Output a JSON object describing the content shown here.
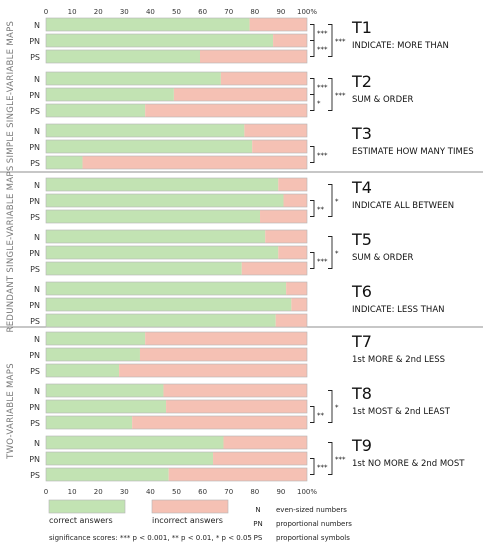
{
  "chart_data": {
    "type": "bar",
    "orientation": "horizontal-stacked",
    "x_ticks": [
      "0",
      "10",
      "20",
      "30",
      "40",
      "50",
      "60",
      "70",
      "80",
      "90",
      "100%"
    ],
    "xlim": [
      0,
      100
    ],
    "colors": {
      "correct": "#c2e3b3",
      "incorrect": "#f5c1b4"
    },
    "groups": [
      {
        "label": "SIMPLE SINGLE-VARIABLE MAPS",
        "tasks": [
          0,
          1,
          2
        ]
      },
      {
        "label": "REDUNDANT SINGLE-VARIABLE MAPS",
        "tasks": [
          3,
          4,
          5
        ]
      },
      {
        "label": "TWO-VARIABLE MAPS",
        "tasks": [
          6,
          7,
          8
        ]
      }
    ],
    "tasks": [
      {
        "name": "T1",
        "description": "INDICATE: MORE THAN",
        "rows": [
          {
            "label": "N",
            "correct": 78
          },
          {
            "label": "PN",
            "correct": 87
          },
          {
            "label": "PS",
            "correct": 59
          }
        ],
        "sig": [
          {
            "pair": [
              0,
              1
            ],
            "stars": "***"
          },
          {
            "pair": [
              1,
              2
            ],
            "stars": "***"
          },
          {
            "pair": [
              0,
              2
            ],
            "stars": "***"
          }
        ]
      },
      {
        "name": "T2",
        "description": "SUM & ORDER",
        "rows": [
          {
            "label": "N",
            "correct": 67
          },
          {
            "label": "PN",
            "correct": 49
          },
          {
            "label": "PS",
            "correct": 38
          }
        ],
        "sig": [
          {
            "pair": [
              0,
              1
            ],
            "stars": "***"
          },
          {
            "pair": [
              1,
              2
            ],
            "stars": "*"
          },
          {
            "pair": [
              0,
              2
            ],
            "stars": "***"
          }
        ]
      },
      {
        "name": "T3",
        "description": "ESTIMATE HOW MANY TIMES",
        "rows": [
          {
            "label": "N",
            "correct": 76
          },
          {
            "label": "PN",
            "correct": 79
          },
          {
            "label": "PS",
            "correct": 14
          }
        ],
        "sig": [
          {
            "pair": [
              1,
              2
            ],
            "stars": "***"
          }
        ]
      },
      {
        "name": "T4",
        "description": "INDICATE ALL BETWEEN",
        "rows": [
          {
            "label": "N",
            "correct": 89
          },
          {
            "label": "PN",
            "correct": 91
          },
          {
            "label": "PS",
            "correct": 82
          }
        ],
        "sig": [
          {
            "pair": [
              1,
              2
            ],
            "stars": "**"
          },
          {
            "pair": [
              0,
              2
            ],
            "stars": "*"
          }
        ]
      },
      {
        "name": "T5",
        "description": "SUM & ORDER",
        "rows": [
          {
            "label": "N",
            "correct": 84
          },
          {
            "label": "PN",
            "correct": 89
          },
          {
            "label": "PS",
            "correct": 75
          }
        ],
        "sig": [
          {
            "pair": [
              1,
              2
            ],
            "stars": "***"
          },
          {
            "pair": [
              0,
              2
            ],
            "stars": "*"
          }
        ]
      },
      {
        "name": "T6",
        "description": "INDICATE: LESS THAN",
        "rows": [
          {
            "label": "N",
            "correct": 92
          },
          {
            "label": "PN",
            "correct": 94
          },
          {
            "label": "PS",
            "correct": 88
          }
        ],
        "sig": []
      },
      {
        "name": "T7",
        "description": "1st MORE & 2nd LESS",
        "rows": [
          {
            "label": "N",
            "correct": 38
          },
          {
            "label": "PN",
            "correct": 36
          },
          {
            "label": "PS",
            "correct": 28
          }
        ],
        "sig": []
      },
      {
        "name": "T8",
        "description": "1st MOST & 2nd LEAST",
        "rows": [
          {
            "label": "N",
            "correct": 45
          },
          {
            "label": "PN",
            "correct": 46
          },
          {
            "label": "PS",
            "correct": 33
          }
        ],
        "sig": [
          {
            "pair": [
              1,
              2
            ],
            "stars": "**"
          },
          {
            "pair": [
              0,
              2
            ],
            "stars": "*"
          }
        ]
      },
      {
        "name": "T9",
        "description": "1st NO MORE & 2nd MOST",
        "rows": [
          {
            "label": "N",
            "correct": 68
          },
          {
            "label": "PN",
            "correct": 64
          },
          {
            "label": "PS",
            "correct": 47
          }
        ],
        "sig": [
          {
            "pair": [
              1,
              2
            ],
            "stars": "***"
          },
          {
            "pair": [
              0,
              2
            ],
            "stars": "***"
          }
        ]
      }
    ],
    "legend": {
      "correct": "correct answers",
      "incorrect": "incorrect answers",
      "significance": "significance scores: *** p < 0.001, ** p < 0.01, * p < 0.05",
      "abbreviations": [
        {
          "code": "N",
          "text": "even-sized numbers"
        },
        {
          "code": "PN",
          "text": "proportional numbers"
        },
        {
          "code": "PS",
          "text": "proportional symbols"
        }
      ]
    }
  }
}
